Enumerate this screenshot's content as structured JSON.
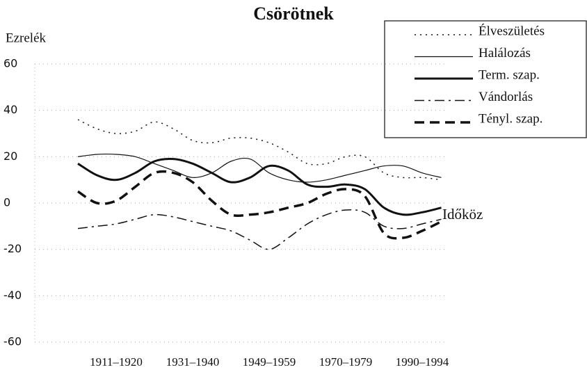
{
  "chart_data": {
    "type": "line",
    "title": "Csörötnek",
    "y_label": "Ezrelék",
    "x_label": "Időköz",
    "categories": [
      null,
      null,
      "1911–1920",
      null,
      null,
      null,
      "1931–1940",
      null,
      null,
      null,
      "1949–1959",
      null,
      null,
      null,
      "1970–1979",
      null,
      null,
      null,
      "1990–1994",
      null
    ],
    "ylim": [
      -60,
      60
    ],
    "yticks": [
      60,
      40,
      20,
      0,
      -20,
      -40,
      -60
    ],
    "grid": true,
    "legend": "top-right",
    "series": [
      {
        "name": "Élveszületés",
        "color": "#111111",
        "dash": "2 6",
        "width": 1.5,
        "values": [
          36,
          32,
          30,
          31,
          35,
          32,
          27,
          26,
          28,
          28,
          26,
          22,
          17,
          17,
          20,
          20,
          13,
          11,
          11,
          10
        ]
      },
      {
        "name": "Halálozás",
        "color": "#111111",
        "dash": "none",
        "width": 1.2,
        "values": [
          20,
          21,
          21,
          20,
          17,
          14,
          11,
          13,
          18,
          19,
          13,
          10,
          9,
          10,
          12,
          14,
          16,
          16,
          13,
          11
        ]
      },
      {
        "name": "Term. szap.",
        "color": "#111111",
        "dash": "none",
        "width": 3,
        "values": [
          17,
          12,
          10,
          13,
          18,
          19,
          17,
          13,
          9,
          11,
          16,
          14,
          8,
          7,
          8,
          6,
          -2,
          -5,
          -4,
          -2
        ]
      },
      {
        "name": "Vándorlás",
        "color": "#111111",
        "dash": "14 6 3 6",
        "width": 1.5,
        "values": [
          -11,
          -10,
          -9,
          -7,
          -5,
          -6,
          -8,
          -10,
          -12,
          -16,
          -20,
          -15,
          -9,
          -5,
          -3,
          -4,
          -10,
          -11,
          -9,
          -7
        ]
      },
      {
        "name": "Tényl. szap.",
        "color": "#111111",
        "dash": "14 8",
        "width": 3.5,
        "values": [
          5,
          0,
          1,
          7,
          13,
          13,
          9,
          1,
          -5,
          -5,
          -4,
          -2,
          0,
          4,
          6,
          3,
          -13,
          -15,
          -12,
          -8
        ]
      }
    ]
  }
}
